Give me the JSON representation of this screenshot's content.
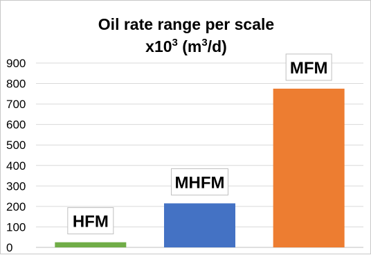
{
  "chart_data": {
    "type": "bar",
    "title": "Oil rate range per scale",
    "subtitle": {
      "prefix": "x10",
      "exp": "3",
      "open": " (m",
      "unit_exp": "3",
      "close": "/d)"
    },
    "categories": [
      "HFM",
      "MHFM",
      "MFM"
    ],
    "values": [
      25,
      215,
      775
    ],
    "colors": [
      "#70ad47",
      "#4472c4",
      "#ed7d31"
    ],
    "ylim": [
      0,
      900
    ],
    "yticks": [
      0,
      100,
      200,
      300,
      400,
      500,
      600,
      700,
      800,
      900
    ],
    "grid": true,
    "legend": "none"
  }
}
